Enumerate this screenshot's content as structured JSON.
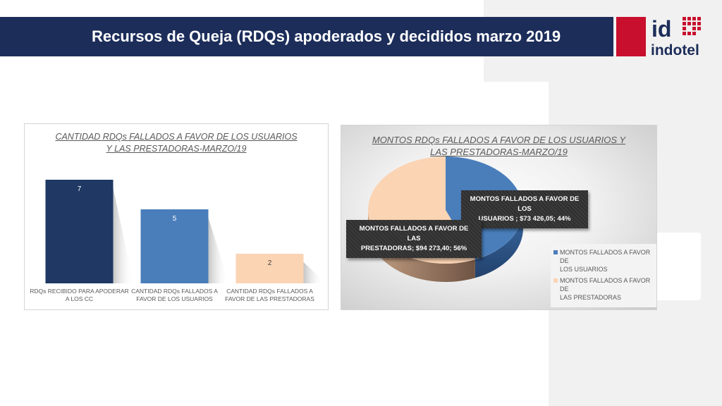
{
  "header": {
    "title": "Recursos de Queja (RDQs) apoderados y decididos marzo  2019",
    "logo_text": "indotel",
    "logo_mark": "id"
  },
  "colors": {
    "header_bg": "#1c2d5a",
    "logo_red": "#c8102e",
    "bar_dark": "#1f3864",
    "bar_mid": "#4a7ebb",
    "bar_light": "#fbd4b4"
  },
  "chart_data": [
    {
      "type": "bar",
      "title_lines": [
        "CANTIDAD RDQs FALLADOS A FAVOR DE LOS USUARIOS",
        "Y LAS PRESTADORAS-MARZO/19"
      ],
      "categories": [
        [
          "RDQs RECIBIDO PARA APODERAR",
          "A LOS CC"
        ],
        [
          "CANTIDAD RDQs FALLADOS A",
          "FAVOR DE LOS USUARIOS"
        ],
        [
          "CANTIDAD RDQs FALLADOS A",
          "FAVOR DE LAS PRESTADORAS"
        ]
      ],
      "values": [
        7,
        5,
        2
      ],
      "data_labels": [
        "7",
        "5",
        "2"
      ],
      "ylim": [
        0,
        8
      ],
      "grid": false,
      "legend": "none"
    },
    {
      "type": "pie",
      "title_lines": [
        "MONTOS RDQs FALLADOS A FAVOR DE LOS  USUARIOS Y",
        "LAS PRESTADORAS-MARZO/19"
      ],
      "slices": [
        {
          "label": "MONTOS  FALLADOS A FAVOR DE LOS USUARIOS",
          "value": 73426.05,
          "percent": 44,
          "data_label_lines": [
            "MONTOS  FALLADOS A FAVOR DE LOS",
            "USUARIOS ; $73 426,05; 44%"
          ],
          "color": "#4a7ebb"
        },
        {
          "label": "MONTOS FALLADOS  A FAVOR DE LAS PRESTADORAS",
          "value": 94273.4,
          "percent": 56,
          "data_label_lines": [
            "MONTOS FALLADOS  A FAVOR DE LAS",
            "PRESTADORAS; $94 273,40; 56%"
          ],
          "color": "#fbd4b4"
        }
      ],
      "legend_items": [
        [
          "MONTOS  FALLADOS A FAVOR DE",
          "LOS USUARIOS"
        ],
        [
          "MONTOS FALLADOS  A FAVOR DE",
          "LAS PRESTADORAS"
        ]
      ],
      "legend": "right",
      "style": "3d"
    }
  ]
}
